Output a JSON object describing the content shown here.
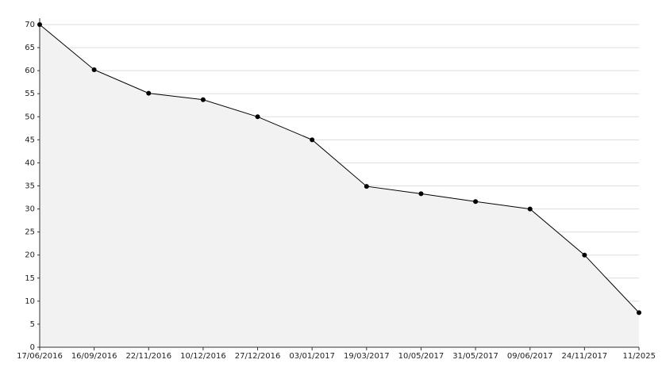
{
  "chart_data": {
    "type": "area",
    "categories": [
      "17/06/2016",
      "16/09/2016",
      "22/11/2016",
      "10/12/2016",
      "27/12/2016",
      "03/01/2017",
      "19/03/2017",
      "10/05/2017",
      "31/05/2017",
      "09/06/2017",
      "24/11/2017",
      "11/2025"
    ],
    "values": [
      70,
      60.2,
      55.1,
      53.7,
      50,
      45,
      34.9,
      33.3,
      31.6,
      30,
      20,
      7.5
    ],
    "color": "#000000",
    "fill": "#f2f2f2",
    "ylim": [
      0,
      70
    ],
    "yticks": [
      0,
      5,
      10,
      15,
      20,
      25,
      30,
      35,
      40,
      45,
      50,
      55,
      60,
      65,
      70
    ],
    "grid": true
  }
}
